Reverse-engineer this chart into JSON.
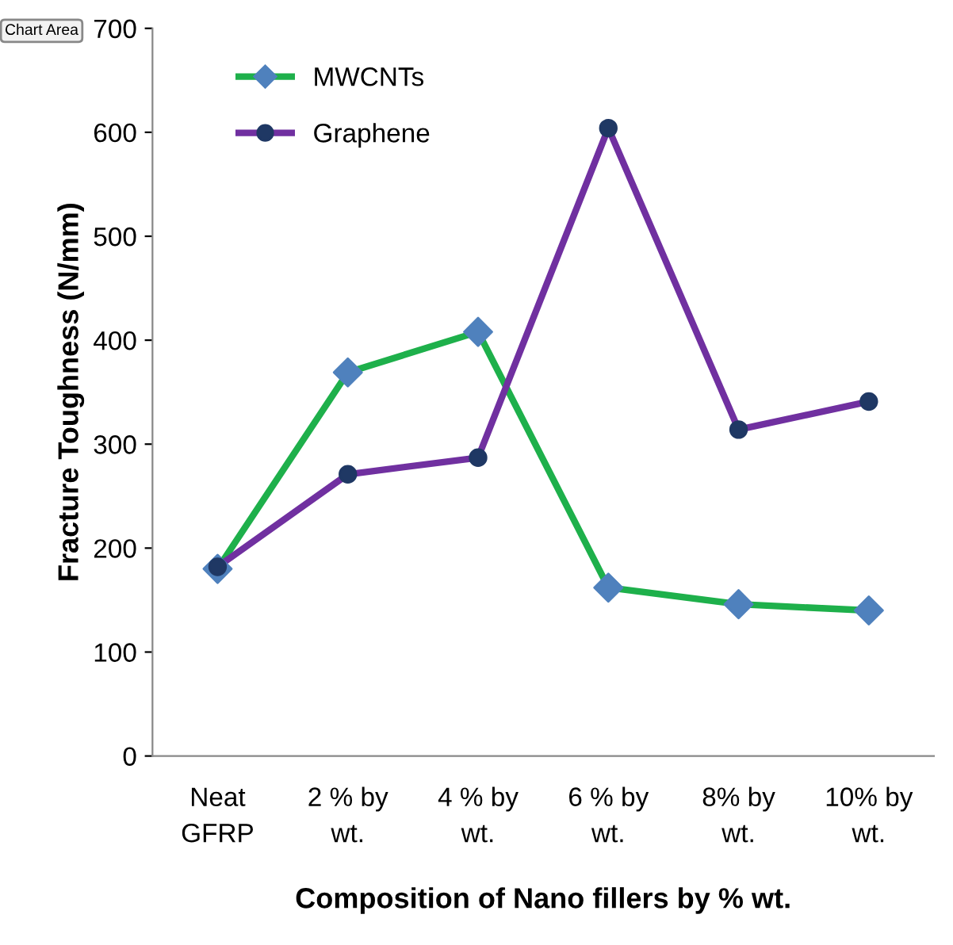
{
  "chart_data": {
    "type": "line",
    "xlabel": "Composition of Nano fillers by % wt.",
    "ylabel": "Fracture Toughness (N/mm)",
    "categories": [
      "Neat\nGFRP",
      "2 % by\nwt.",
      "4 % by\nwt.",
      "6 % by\nwt.",
      "8% by\nwt.",
      "10% by\nwt."
    ],
    "series": [
      {
        "name": "MWCNTs",
        "color": "#1eb04b",
        "marker": "diamond",
        "colors": [
          "#4f81bd",
          "#4f81bd",
          "#4f81bd",
          "#4f81bd",
          "#4f81bd",
          "#4f81bd"
        ],
        "values": [
          180,
          369,
          408,
          162,
          146,
          140
        ]
      },
      {
        "name": "Graphene",
        "color": "#7030a0",
        "marker": "circle",
        "colors": [
          "#1f3864",
          "#1f3864",
          "#1f3864",
          "#1f3864",
          "#1f3864",
          "#1f3864"
        ],
        "values": [
          182,
          271,
          287,
          604,
          314,
          341
        ]
      }
    ],
    "ylim": [
      0,
      700
    ],
    "yticks": [
      0,
      100,
      200,
      300,
      400,
      500,
      600,
      700
    ],
    "grid": false,
    "legend": "top left",
    "line_style": "solid",
    "annotations": [
      "Chart Area"
    ]
  }
}
